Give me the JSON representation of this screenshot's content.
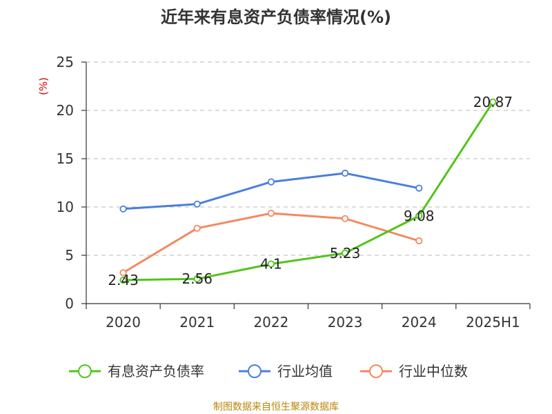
{
  "chart_data": {
    "type": "line",
    "title": "近年来有息资产负债率情况(%)",
    "ylabel": "(%)",
    "xlabel": "",
    "categories": [
      "2020",
      "2021",
      "2022",
      "2023",
      "2024",
      "2025H1"
    ],
    "ylim": [
      0,
      25
    ],
    "yticks": [
      "0",
      "5",
      "10",
      "15",
      "20",
      "25"
    ],
    "grid": true,
    "legend_position": "bottom",
    "series": [
      {
        "name": "有息资产负债率",
        "color": "#52c41a",
        "values": [
          2.43,
          2.56,
          4.1,
          5.23,
          9.08,
          20.87
        ],
        "labels": [
          "2.43",
          "2.56",
          "4.1",
          "5.23",
          "9.08",
          "20.87"
        ]
      },
      {
        "name": "行业均值",
        "color": "#4a7fdb",
        "values": [
          9.8,
          10.3,
          12.6,
          13.5,
          11.95,
          null
        ]
      },
      {
        "name": "行业中位数",
        "color": "#f4895f",
        "values": [
          3.2,
          7.8,
          9.35,
          8.8,
          6.5,
          null
        ]
      }
    ],
    "source": "制图数据来自恒生聚源数据库"
  }
}
